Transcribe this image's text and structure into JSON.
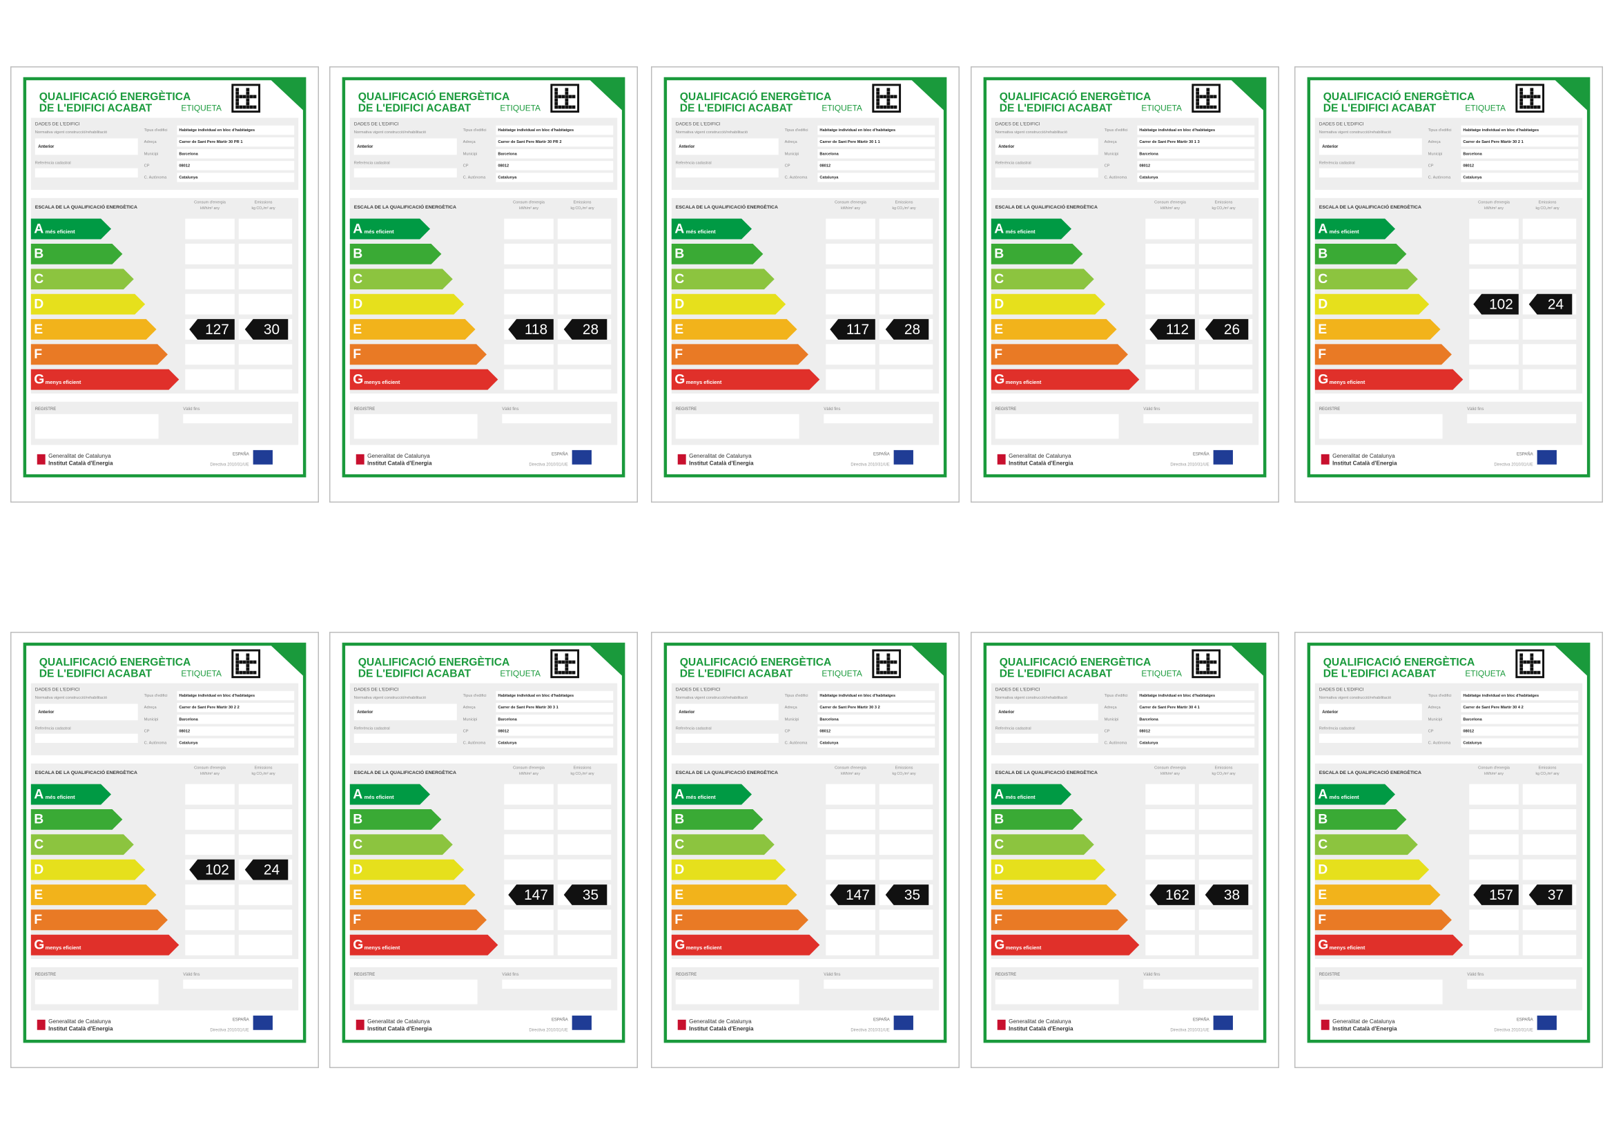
{
  "template": {
    "title_1": "QUALIFICACIÓ ENERGÈTICA",
    "title_2": "DE L'EDIFICI ACABAT",
    "etiqueta": "ETIQUETA",
    "dades": "DADES DE L'EDIFICI",
    "normativa": "Normativa vigent construcció/rehabilitació",
    "normativa_value": "Anterior",
    "referencia": "Referència cadastral",
    "tipus": "Tipus d'edifici",
    "tipus_value": "Habitatge individual en bloc d'habitatges",
    "adreca": "Adreça",
    "municipi": "Municipi",
    "municipi_value": "Barcelona",
    "cp": "CP",
    "cp_value": "08012",
    "autonoma": "C. Autònoma",
    "autonoma_value": "Catalunya",
    "escala": "ESCALA DE LA QUALIFICACIÓ ENERGÈTICA",
    "consum": "Consum d'energia",
    "consum_unit": "kWh/m² any",
    "emissions": "Emissions",
    "emissions_unit": "kg CO₂/m² any",
    "mes_eficient": "més eficient",
    "menys_eficient": "menys eficient",
    "registre": "REGISTRE",
    "valid": "Vàlid fins",
    "generalitat": "Generalitat de Catalunya",
    "icaen": "Institut Català d'Energia",
    "espana": "ESPAÑA",
    "directiva": "Directiva 2010/31/UE"
  },
  "scale": [
    "A",
    "B",
    "C",
    "D",
    "E",
    "F",
    "G"
  ],
  "labels": [
    {
      "address": "Carrer de Sant Pere Màrtir 30 PR 1",
      "consumption": 127,
      "emissions": 30,
      "rating": "E"
    },
    {
      "address": "Carrer de Sant Pere Màrtir 30 PR 2",
      "consumption": 118,
      "emissions": 28,
      "rating": "E"
    },
    {
      "address": "Carrer de Sant Pere Màrtir 30 1 1",
      "consumption": 117,
      "emissions": 28,
      "rating": "E"
    },
    {
      "address": "Carrer de Sant Pere Màrtir 30 1 3",
      "consumption": 112,
      "emissions": 26,
      "rating": "E"
    },
    {
      "address": "Carrer de Sant Pere Màrtir 30 2 1",
      "consumption": 102,
      "emissions": 24,
      "rating": "D"
    },
    {
      "address": "Carrer de Sant Pere Màrtir 30 2 2",
      "consumption": 102,
      "emissions": 24,
      "rating": "D"
    },
    {
      "address": "Carrer de Sant Pere Màrtir 30 3 1",
      "consumption": 147,
      "emissions": 35,
      "rating": "E"
    },
    {
      "address": "Carrer de Sant Pere Màrtir 30 3 2",
      "consumption": 147,
      "emissions": 35,
      "rating": "E"
    },
    {
      "address": "Carrer de Sant Pere Màrtir 30 4 1",
      "consumption": 162,
      "emissions": 38,
      "rating": "E"
    },
    {
      "address": "Carrer de Sant Pere Màrtir 30 4 2",
      "consumption": 157,
      "emissions": 37,
      "rating": "E"
    }
  ]
}
